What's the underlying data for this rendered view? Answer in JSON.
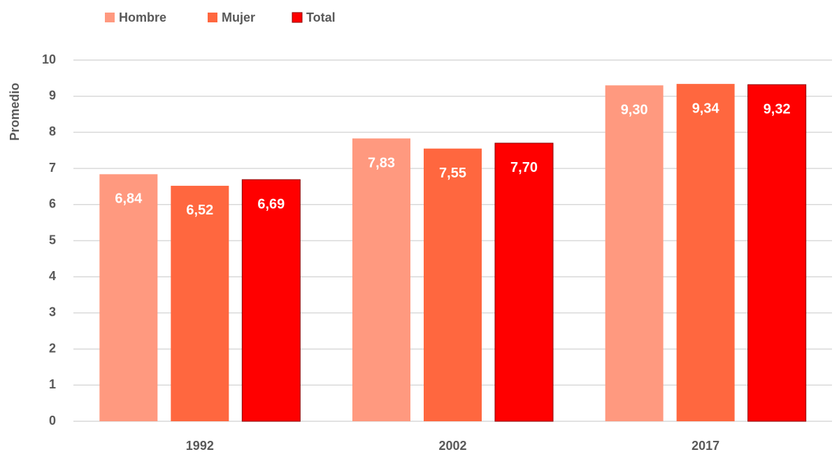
{
  "chart_data": {
    "type": "bar",
    "y_label": "Promedio",
    "categories": [
      "1992",
      "2002",
      "2017"
    ],
    "series": [
      {
        "name": "Hombre",
        "color": "#ff997f",
        "values": [
          6.84,
          7.83,
          9.3
        ],
        "value_labels": [
          "6,84",
          "7,83",
          "9,30"
        ]
      },
      {
        "name": "Mujer",
        "color": "#ff673f",
        "values": [
          6.52,
          7.55,
          9.34
        ],
        "value_labels": [
          "6,52",
          "7,55",
          "9,34"
        ]
      },
      {
        "name": "Total",
        "color": "#ff0000",
        "values": [
          6.69,
          7.7,
          9.32
        ],
        "value_labels": [
          "6,69",
          "7,70",
          "9,32"
        ]
      }
    ],
    "ylim": [
      0,
      10
    ],
    "yticks": [
      0,
      1,
      2,
      3,
      4,
      5,
      6,
      7,
      8,
      9,
      10
    ],
    "grid": true,
    "legend": "top-left"
  }
}
